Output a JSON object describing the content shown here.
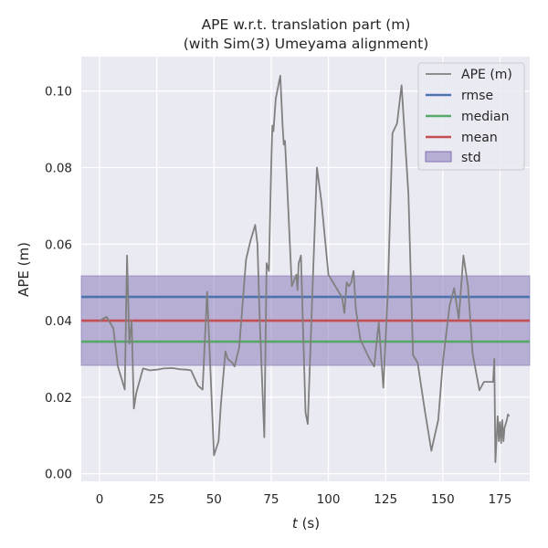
{
  "chart_data": {
    "type": "line",
    "title": [
      "APE w.r.t. translation part (m)",
      "(with Sim(3) Umeyama alignment)"
    ],
    "xlabel_var": "t",
    "xlabel_unit": " (s)",
    "ylabel": "APE (m)",
    "xlim": [
      -8,
      188
    ],
    "ylim": [
      -0.002,
      0.109
    ],
    "x_ticks": [
      0,
      25,
      50,
      75,
      100,
      125,
      150,
      175
    ],
    "y_ticks": [
      0.0,
      0.02,
      0.04,
      0.06,
      0.08,
      0.1
    ],
    "y_tick_labels": [
      "0.00",
      "0.02",
      "0.04",
      "0.06",
      "0.08",
      "0.10"
    ],
    "grid": true,
    "legend_position": "top-right",
    "colors": {
      "background": "#eaeaf2",
      "grid": "#ffffff",
      "ape": "#808080",
      "rmse": "#4c72b0",
      "median": "#55a868",
      "mean": "#c44e52",
      "std": "#8172b3"
    },
    "stats": {
      "rmse": 0.0462,
      "median": 0.0345,
      "mean": 0.04,
      "std_low": 0.0283,
      "std_high": 0.0517
    },
    "legend": [
      "APE (m)",
      "rmse",
      "median",
      "mean",
      "std"
    ],
    "series": [
      {
        "name": "APE (m)",
        "x": [
          0,
          3,
          6,
          8,
          11,
          12,
          13,
          14,
          15,
          16,
          19,
          22,
          25,
          28,
          32,
          35,
          38,
          40,
          43,
          45,
          47,
          50,
          52,
          53,
          55,
          56,
          58,
          59,
          61,
          64,
          66,
          68,
          69,
          70,
          72,
          73,
          74,
          75,
          75.5,
          76,
          77,
          78,
          79,
          80,
          80.5,
          81,
          82,
          84,
          86,
          86.5,
          87,
          88,
          90,
          91,
          93,
          95,
          97,
          100,
          104,
          106,
          107,
          108,
          109,
          110,
          111,
          112,
          114,
          118,
          120,
          121,
          122,
          124,
          126,
          128,
          130,
          132,
          135,
          137,
          139,
          142,
          145,
          148,
          150,
          153,
          155,
          157,
          159,
          161,
          163,
          166,
          168,
          170,
          172,
          172.5,
          173,
          174,
          174.5,
          175,
          175.5,
          176,
          176.5,
          177,
          177.5,
          178,
          178.5,
          179
        ],
        "y": [
          0.04,
          0.041,
          0.038,
          0.028,
          0.022,
          0.057,
          0.034,
          0.04,
          0.017,
          0.021,
          0.0275,
          0.027,
          0.0272,
          0.0275,
          0.0276,
          0.0273,
          0.0272,
          0.027,
          0.023,
          0.022,
          0.0475,
          0.0048,
          0.0085,
          0.018,
          0.032,
          0.03,
          0.029,
          0.028,
          0.033,
          0.056,
          0.061,
          0.065,
          0.06,
          0.04,
          0.0095,
          0.055,
          0.053,
          0.08,
          0.091,
          0.0895,
          0.098,
          0.101,
          0.104,
          0.091,
          0.086,
          0.087,
          0.075,
          0.049,
          0.052,
          0.048,
          0.055,
          0.057,
          0.016,
          0.013,
          0.047,
          0.08,
          0.071,
          0.052,
          0.048,
          0.046,
          0.042,
          0.05,
          0.049,
          0.05,
          0.053,
          0.043,
          0.035,
          0.03,
          0.028,
          0.034,
          0.0395,
          0.0225,
          0.048,
          0.089,
          0.0915,
          0.1015,
          0.073,
          0.031,
          0.029,
          0.017,
          0.006,
          0.014,
          0.029,
          0.044,
          0.0485,
          0.0405,
          0.057,
          0.049,
          0.0315,
          0.0218,
          0.024,
          0.024,
          0.024,
          0.03,
          0.003,
          0.015,
          0.0085,
          0.0135,
          0.008,
          0.014,
          0.0085,
          0.012,
          0.013,
          0.014,
          0.0155,
          0.015
        ]
      }
    ]
  }
}
